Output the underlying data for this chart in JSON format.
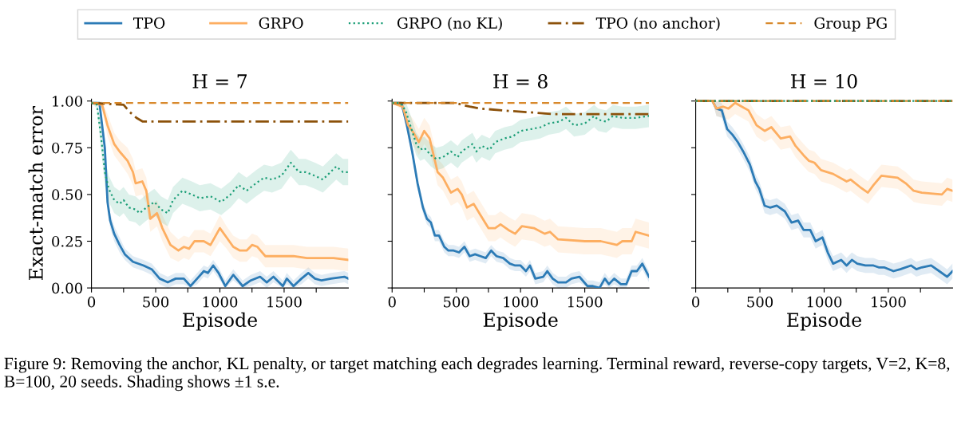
{
  "chart_data": [
    {
      "type": "line",
      "title": "H = 7",
      "xlabel": "Episode",
      "ylabel": "Exact-match error",
      "legend": "top",
      "grid": false,
      "xlim": [
        0,
        2000
      ],
      "ylim": [
        0,
        1.01
      ],
      "xticks": [
        0,
        {
          "value": 250,
          "label": null
        },
        500,
        {
          "value": 750,
          "label": null
        },
        1000,
        {
          "value": 1250,
          "label": null
        },
        1500,
        {
          "value": 1750,
          "label": null
        }
      ],
      "yticks": [
        {
          "value": 0,
          "label": "0.00"
        },
        {
          "value": 0.25,
          "label": "0.25"
        },
        {
          "value": 0.5,
          "label": "0.50"
        },
        {
          "value": 0.75,
          "label": "0.75"
        },
        {
          "value": 1,
          "label": "1.00"
        }
      ],
      "annotations": [
        "Figure 9: Removing the anchor, KL penalty, or target matching each degrades learning. Terminal reward, reverse-copy targets, V=2, K=8, B=100, 20 seeds. Shading shows ±1 s.e."
      ],
      "series": [
        {
          "name": "TPO",
          "color": "#2c7bb6",
          "line_style": "solid",
          "x": [
            0,
            62,
            104,
            125,
            146,
            177,
            219,
            260,
            323,
            406,
            469,
            531,
            594,
            656,
            719,
            771,
            823,
            875,
            906,
            948,
            990,
            1042,
            1104,
            1177,
            1240,
            1313,
            1365,
            1417,
            1490,
            1521,
            1573,
            1635,
            1688,
            1740,
            1792,
            1865,
            1969,
            2000
          ],
          "values": [
            0.99,
            0.99,
            0.75,
            0.46,
            0.36,
            0.29,
            0.23,
            0.18,
            0.14,
            0.12,
            0.1,
            0.05,
            0.03,
            0.05,
            0.05,
            0.01,
            0.05,
            0.09,
            0.08,
            0.12,
            0.08,
            0.01,
            0.07,
            0.01,
            0.04,
            0.06,
            0.03,
            0.06,
            0.01,
            0.05,
            0.01,
            0.05,
            0.08,
            0.05,
            0.04,
            0.05,
            0.06,
            0.05
          ],
          "lower": [
            0.99,
            0.99,
            0.7,
            0.41,
            0.32,
            0.25,
            0.19,
            0.15,
            0.11,
            0.09,
            0.07,
            0.02,
            0.0,
            0.02,
            0.02,
            0.0,
            0.02,
            0.06,
            0.05,
            0.09,
            0.05,
            0.0,
            0.04,
            0.0,
            0.01,
            0.03,
            0.0,
            0.03,
            0.0,
            0.02,
            0.0,
            0.02,
            0.05,
            0.02,
            0.01,
            0.02,
            0.03,
            0.02
          ],
          "upper": [
            0.99,
            0.99,
            0.8,
            0.51,
            0.4,
            0.33,
            0.27,
            0.21,
            0.17,
            0.15,
            0.13,
            0.08,
            0.06,
            0.08,
            0.08,
            0.04,
            0.08,
            0.12,
            0.11,
            0.15,
            0.11,
            0.04,
            0.1,
            0.04,
            0.07,
            0.09,
            0.06,
            0.09,
            0.04,
            0.08,
            0.04,
            0.08,
            0.11,
            0.08,
            0.07,
            0.08,
            0.09,
            0.08
          ]
        },
        {
          "name": "GRPO",
          "color": "#fdae61",
          "line_style": "solid",
          "x": [
            0,
            83,
            125,
            177,
            219,
            281,
            323,
            344,
            396,
            427,
            458,
            510,
            552,
            615,
            677,
            719,
            760,
            802,
            875,
            927,
            1000,
            1052,
            1104,
            1156,
            1208,
            1250,
            1292,
            1354,
            1573,
            1677,
            1885,
            2000
          ],
          "values": [
            0.99,
            0.98,
            0.87,
            0.77,
            0.73,
            0.68,
            0.62,
            0.56,
            0.57,
            0.52,
            0.37,
            0.4,
            0.32,
            0.23,
            0.2,
            0.22,
            0.21,
            0.25,
            0.25,
            0.23,
            0.32,
            0.27,
            0.22,
            0.2,
            0.2,
            0.23,
            0.22,
            0.17,
            0.17,
            0.16,
            0.16,
            0.15
          ],
          "lower": [
            0.99,
            0.96,
            0.81,
            0.71,
            0.67,
            0.61,
            0.55,
            0.49,
            0.5,
            0.45,
            0.3,
            0.33,
            0.25,
            0.16,
            0.14,
            0.16,
            0.15,
            0.19,
            0.19,
            0.17,
            0.25,
            0.21,
            0.16,
            0.14,
            0.14,
            0.17,
            0.16,
            0.11,
            0.11,
            0.1,
            0.1,
            0.09
          ],
          "upper": [
            0.99,
            1.0,
            0.93,
            0.83,
            0.79,
            0.75,
            0.69,
            0.63,
            0.64,
            0.59,
            0.44,
            0.47,
            0.39,
            0.3,
            0.26,
            0.28,
            0.27,
            0.31,
            0.31,
            0.29,
            0.39,
            0.33,
            0.28,
            0.26,
            0.26,
            0.29,
            0.28,
            0.23,
            0.23,
            0.22,
            0.22,
            0.21
          ]
        },
        {
          "name": "GRPO (no KL)",
          "color": "#1b9e77",
          "line_style": "dotted",
          "x": [
            0,
            42,
            73,
            104,
            135,
            177,
            219,
            250,
            292,
            344,
            375,
            427,
            490,
            542,
            594,
            635,
            708,
            781,
            844,
            927,
            1010,
            1083,
            1146,
            1208,
            1281,
            1344,
            1406,
            1479,
            1552,
            1615,
            1667,
            1740,
            1802,
            1906,
            1958,
            2000
          ],
          "values": [
            0.99,
            0.98,
            0.82,
            0.62,
            0.53,
            0.47,
            0.45,
            0.47,
            0.43,
            0.42,
            0.4,
            0.43,
            0.46,
            0.42,
            0.4,
            0.47,
            0.52,
            0.5,
            0.48,
            0.49,
            0.46,
            0.5,
            0.55,
            0.52,
            0.56,
            0.59,
            0.58,
            0.6,
            0.67,
            0.62,
            0.62,
            0.6,
            0.58,
            0.65,
            0.62,
            0.62
          ],
          "lower": [
            0.99,
            0.96,
            0.75,
            0.55,
            0.46,
            0.4,
            0.38,
            0.4,
            0.36,
            0.35,
            0.33,
            0.36,
            0.39,
            0.35,
            0.33,
            0.4,
            0.45,
            0.43,
            0.41,
            0.42,
            0.39,
            0.43,
            0.48,
            0.45,
            0.49,
            0.52,
            0.51,
            0.53,
            0.6,
            0.55,
            0.55,
            0.53,
            0.51,
            0.58,
            0.55,
            0.55
          ],
          "upper": [
            0.99,
            1.0,
            0.89,
            0.69,
            0.6,
            0.54,
            0.52,
            0.54,
            0.5,
            0.49,
            0.47,
            0.5,
            0.53,
            0.49,
            0.47,
            0.54,
            0.59,
            0.57,
            0.55,
            0.56,
            0.53,
            0.57,
            0.62,
            0.59,
            0.63,
            0.66,
            0.65,
            0.67,
            0.74,
            0.69,
            0.69,
            0.67,
            0.65,
            0.72,
            0.69,
            0.69
          ]
        },
        {
          "name": "TPO (no anchor)",
          "color": "#8c510a",
          "line_style": "dashdot",
          "x": [
            0,
            250,
            300,
            350,
            400,
            500,
            2000
          ],
          "values": [
            0.99,
            0.98,
            0.94,
            0.91,
            0.89,
            0.89,
            0.89
          ]
        },
        {
          "name": "Group PG",
          "color": "#d8892c",
          "line_style": "dashed",
          "x": [
            0,
            2000
          ],
          "values": [
            0.99,
            0.99
          ]
        }
      ]
    },
    {
      "type": "line",
      "title": "H = 8",
      "xlabel": "Episode",
      "grid": false,
      "tick_labels": "x",
      "xlim": [
        0,
        2000
      ],
      "ylim": [
        0,
        1.01
      ],
      "xticks": [
        0,
        {
          "value": 250,
          "label": null
        },
        500,
        {
          "value": 750,
          "label": null
        },
        1000,
        {
          "value": 1250,
          "label": null
        },
        1500,
        {
          "value": 1750,
          "label": null
        }
      ],
      "yticks": [
        {
          "value": 0,
          "label": null
        },
        {
          "value": 0.25,
          "label": null
        },
        {
          "value": 0.5,
          "label": null
        },
        {
          "value": 0.75,
          "label": null
        },
        {
          "value": 1,
          "label": null
        }
      ],
      "series": [
        {
          "color": "#2c7bb6",
          "line_style": "solid",
          "x": [
            0,
            73,
            115,
            156,
            198,
            240,
            271,
            302,
            333,
            365,
            406,
            438,
            479,
            521,
            563,
            604,
            646,
            688,
            729,
            771,
            813,
            865,
            917,
            958,
            1000,
            1042,
            1073,
            1115,
            1177,
            1208,
            1250,
            1292,
            1354,
            1396,
            1458,
            1521,
            1563,
            1615,
            1656,
            1688,
            1729,
            1781,
            1823,
            1865,
            1906,
            1948,
            2000
          ],
          "values": [
            0.99,
            0.99,
            0.87,
            0.73,
            0.56,
            0.43,
            0.37,
            0.35,
            0.28,
            0.28,
            0.22,
            0.2,
            0.2,
            0.19,
            0.22,
            0.17,
            0.18,
            0.17,
            0.16,
            0.2,
            0.17,
            0.16,
            0.13,
            0.12,
            0.12,
            0.09,
            0.12,
            0.05,
            0.06,
            0.09,
            0.05,
            0.03,
            0.03,
            0.05,
            0.06,
            0.01,
            0.01,
            0.0,
            0.05,
            0.02,
            0.05,
            0.02,
            0.02,
            0.09,
            0.09,
            0.13,
            0.06
          ],
          "lower": [
            0.99,
            0.99,
            0.84,
            0.7,
            0.53,
            0.4,
            0.34,
            0.32,
            0.25,
            0.25,
            0.19,
            0.17,
            0.17,
            0.16,
            0.19,
            0.14,
            0.15,
            0.14,
            0.13,
            0.17,
            0.14,
            0.13,
            0.1,
            0.09,
            0.09,
            0.06,
            0.09,
            0.02,
            0.03,
            0.06,
            0.02,
            0.0,
            0.0,
            0.02,
            0.03,
            0.0,
            0.0,
            0.0,
            0.02,
            0.0,
            0.02,
            0.0,
            0.0,
            0.06,
            0.06,
            0.1,
            0.03
          ],
          "upper": [
            0.99,
            0.99,
            0.9,
            0.76,
            0.59,
            0.46,
            0.4,
            0.38,
            0.31,
            0.31,
            0.25,
            0.23,
            0.23,
            0.22,
            0.25,
            0.2,
            0.21,
            0.2,
            0.19,
            0.23,
            0.2,
            0.19,
            0.16,
            0.15,
            0.15,
            0.12,
            0.15,
            0.08,
            0.09,
            0.12,
            0.08,
            0.06,
            0.06,
            0.08,
            0.09,
            0.04,
            0.04,
            0.03,
            0.08,
            0.05,
            0.08,
            0.05,
            0.05,
            0.12,
            0.12,
            0.16,
            0.09
          ]
        },
        {
          "color": "#fdae61",
          "line_style": "solid",
          "x": [
            0,
            83,
            125,
            167,
            208,
            250,
            292,
            323,
            354,
            396,
            458,
            510,
            542,
            583,
            635,
            688,
            750,
            802,
            844,
            906,
            958,
            1010,
            1104,
            1188,
            1229,
            1292,
            1500,
            1625,
            1750,
            1792,
            1865,
            1896,
            2000
          ],
          "values": [
            0.99,
            0.97,
            0.87,
            0.83,
            0.78,
            0.84,
            0.8,
            0.71,
            0.62,
            0.59,
            0.51,
            0.53,
            0.5,
            0.43,
            0.45,
            0.39,
            0.32,
            0.32,
            0.34,
            0.31,
            0.29,
            0.33,
            0.32,
            0.29,
            0.3,
            0.26,
            0.25,
            0.25,
            0.23,
            0.25,
            0.25,
            0.3,
            0.28
          ],
          "lower": [
            0.99,
            0.95,
            0.8,
            0.76,
            0.71,
            0.77,
            0.73,
            0.64,
            0.55,
            0.52,
            0.44,
            0.46,
            0.43,
            0.36,
            0.38,
            0.32,
            0.25,
            0.25,
            0.27,
            0.24,
            0.22,
            0.26,
            0.25,
            0.22,
            0.23,
            0.19,
            0.18,
            0.18,
            0.16,
            0.18,
            0.18,
            0.23,
            0.21
          ],
          "upper": [
            0.99,
            0.99,
            0.94,
            0.9,
            0.85,
            0.91,
            0.87,
            0.78,
            0.69,
            0.66,
            0.58,
            0.6,
            0.57,
            0.5,
            0.52,
            0.46,
            0.39,
            0.39,
            0.41,
            0.38,
            0.36,
            0.4,
            0.39,
            0.36,
            0.37,
            0.33,
            0.32,
            0.32,
            0.3,
            0.32,
            0.32,
            0.37,
            0.35
          ]
        },
        {
          "color": "#1b9e77",
          "line_style": "dotted",
          "x": [
            0,
            62,
            104,
            146,
            188,
            219,
            250,
            302,
            344,
            396,
            458,
            510,
            542,
            625,
            656,
            698,
            760,
            802,
            875,
            938,
            1000,
            1083,
            1156,
            1219,
            1302,
            1354,
            1417,
            1500,
            1573,
            1604,
            1667,
            1719,
            1792,
            1896,
            2000
          ],
          "values": [
            0.99,
            0.99,
            0.95,
            0.86,
            0.77,
            0.74,
            0.75,
            0.71,
            0.69,
            0.7,
            0.73,
            0.7,
            0.73,
            0.77,
            0.73,
            0.76,
            0.74,
            0.78,
            0.8,
            0.81,
            0.84,
            0.85,
            0.86,
            0.88,
            0.89,
            0.91,
            0.87,
            0.88,
            0.92,
            0.9,
            0.89,
            0.92,
            0.91,
            0.91,
            0.92
          ],
          "lower": [
            0.99,
            0.99,
            0.89,
            0.8,
            0.71,
            0.68,
            0.69,
            0.65,
            0.63,
            0.64,
            0.67,
            0.64,
            0.67,
            0.71,
            0.67,
            0.7,
            0.68,
            0.72,
            0.74,
            0.75,
            0.78,
            0.79,
            0.8,
            0.82,
            0.83,
            0.85,
            0.81,
            0.82,
            0.86,
            0.84,
            0.83,
            0.86,
            0.85,
            0.85,
            0.86
          ],
          "upper": [
            0.99,
            0.99,
            1.0,
            0.92,
            0.83,
            0.8,
            0.81,
            0.77,
            0.75,
            0.76,
            0.79,
            0.76,
            0.79,
            0.83,
            0.79,
            0.82,
            0.8,
            0.84,
            0.86,
            0.87,
            0.9,
            0.91,
            0.92,
            0.94,
            0.95,
            0.97,
            0.93,
            0.94,
            0.98,
            0.96,
            0.95,
            0.98,
            0.97,
            0.97,
            0.98
          ]
        },
        {
          "color": "#8c510a",
          "line_style": "dashdot",
          "x": [
            0,
            500,
            542,
            604,
            688,
            854,
            1063,
            1250,
            2000
          ],
          "values": [
            0.99,
            0.99,
            0.98,
            0.97,
            0.96,
            0.95,
            0.94,
            0.93,
            0.93
          ]
        },
        {
          "color": "#d8892c",
          "line_style": "dashed",
          "x": [
            0,
            2000
          ],
          "values": [
            0.99,
            0.99
          ]
        }
      ]
    },
    {
      "type": "line",
      "title": "H = 10",
      "xlabel": "Episode",
      "grid": false,
      "tick_labels": "x",
      "xlim": [
        0,
        2000
      ],
      "ylim": [
        0,
        1.01
      ],
      "xticks": [
        0,
        {
          "value": 250,
          "label": null
        },
        500,
        {
          "value": 750,
          "label": null
        },
        1000,
        {
          "value": 1250,
          "label": null
        },
        1500,
        {
          "value": 1750,
          "label": null
        }
      ],
      "yticks": [
        {
          "value": 0,
          "label": null
        },
        {
          "value": 0.25,
          "label": null
        },
        {
          "value": 0.5,
          "label": null
        },
        {
          "value": 0.75,
          "label": null
        },
        {
          "value": 1,
          "label": null
        }
      ],
      "series": [
        {
          "color": "#2c7bb6",
          "line_style": "solid",
          "x": [
            0,
            130,
            161,
            203,
            245,
            286,
            328,
            370,
            422,
            464,
            495,
            537,
            579,
            631,
            694,
            746,
            798,
            840,
            892,
            934,
            987,
            1028,
            1070,
            1133,
            1175,
            1216,
            1258,
            1321,
            1384,
            1425,
            1467,
            1540,
            1593,
            1676,
            1718,
            1760,
            1833,
            1896,
            1958,
            2000
          ],
          "values": [
            1.0,
            1.0,
            0.96,
            0.95,
            0.85,
            0.82,
            0.78,
            0.73,
            0.66,
            0.57,
            0.53,
            0.44,
            0.43,
            0.44,
            0.41,
            0.35,
            0.36,
            0.31,
            0.31,
            0.25,
            0.27,
            0.19,
            0.13,
            0.15,
            0.12,
            0.15,
            0.13,
            0.12,
            0.12,
            0.11,
            0.11,
            0.09,
            0.1,
            0.12,
            0.1,
            0.11,
            0.12,
            0.09,
            0.06,
            0.09
          ],
          "lower": [
            1.0,
            1.0,
            0.92,
            0.91,
            0.81,
            0.78,
            0.74,
            0.69,
            0.62,
            0.53,
            0.49,
            0.4,
            0.39,
            0.4,
            0.37,
            0.31,
            0.32,
            0.27,
            0.27,
            0.21,
            0.23,
            0.15,
            0.09,
            0.11,
            0.08,
            0.11,
            0.09,
            0.08,
            0.08,
            0.07,
            0.07,
            0.05,
            0.06,
            0.08,
            0.06,
            0.07,
            0.08,
            0.05,
            0.02,
            0.05
          ],
          "upper": [
            1.0,
            1.0,
            1.0,
            0.99,
            0.89,
            0.86,
            0.82,
            0.77,
            0.7,
            0.61,
            0.57,
            0.48,
            0.47,
            0.48,
            0.45,
            0.39,
            0.4,
            0.35,
            0.35,
            0.29,
            0.31,
            0.23,
            0.17,
            0.19,
            0.16,
            0.19,
            0.17,
            0.16,
            0.16,
            0.15,
            0.15,
            0.13,
            0.14,
            0.16,
            0.14,
            0.15,
            0.16,
            0.13,
            0.1,
            0.13
          ]
        },
        {
          "color": "#fdae61",
          "line_style": "solid",
          "x": [
            0,
            130,
            161,
            213,
            255,
            307,
            359,
            411,
            474,
            537,
            589,
            662,
            735,
            777,
            840,
            882,
            924,
            976,
            1070,
            1175,
            1206,
            1279,
            1341,
            1384,
            1446,
            1572,
            1635,
            1697,
            1760,
            1917,
            1958,
            2000
          ],
          "values": [
            1.0,
            1.0,
            0.96,
            0.97,
            0.96,
            0.99,
            0.97,
            0.95,
            0.87,
            0.84,
            0.86,
            0.8,
            0.81,
            0.76,
            0.71,
            0.68,
            0.67,
            0.63,
            0.61,
            0.57,
            0.58,
            0.54,
            0.51,
            0.55,
            0.6,
            0.59,
            0.56,
            0.52,
            0.51,
            0.5,
            0.53,
            0.52
          ],
          "lower": [
            1.0,
            1.0,
            0.92,
            0.91,
            0.9,
            0.93,
            0.91,
            0.89,
            0.81,
            0.78,
            0.8,
            0.74,
            0.75,
            0.7,
            0.65,
            0.62,
            0.61,
            0.57,
            0.55,
            0.51,
            0.52,
            0.48,
            0.45,
            0.49,
            0.54,
            0.53,
            0.5,
            0.46,
            0.45,
            0.44,
            0.47,
            0.46
          ],
          "upper": [
            1.0,
            1.0,
            1.0,
            1.0,
            1.0,
            1.0,
            1.0,
            1.0,
            0.93,
            0.9,
            0.92,
            0.86,
            0.87,
            0.82,
            0.77,
            0.74,
            0.73,
            0.69,
            0.67,
            0.63,
            0.64,
            0.6,
            0.57,
            0.61,
            0.66,
            0.65,
            0.62,
            0.58,
            0.57,
            0.56,
            0.59,
            0.58
          ]
        },
        {
          "color": "#1b9e77",
          "line_style": "dotted",
          "x": [
            0,
            2000
          ],
          "values": [
            1.0,
            1.0
          ]
        },
        {
          "color": "#8c510a",
          "line_style": "dashdot",
          "x": [
            0,
            2000
          ],
          "values": [
            1.0,
            1.0
          ]
        },
        {
          "color": "#d8892c",
          "line_style": "dashed",
          "x": [
            0,
            2000
          ],
          "values": [
            1.0,
            1.0
          ]
        }
      ]
    }
  ]
}
